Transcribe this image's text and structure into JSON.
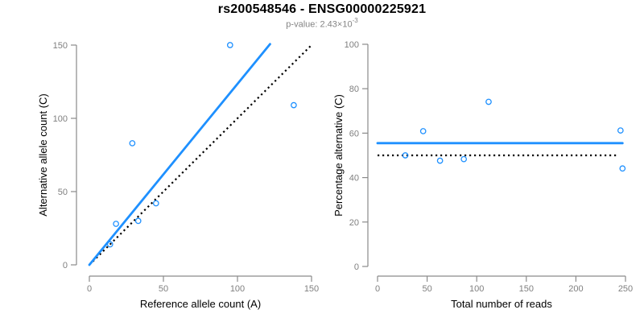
{
  "header": {
    "title": "rs200548546 - ENSG00000225921",
    "pvalue_text": "p-value: 2.43×10",
    "pvalue_exponent": "-3"
  },
  "colors": {
    "accent_blue": "#1E90FF",
    "line_black": "#000000",
    "axis_gray": "#8a8a8a",
    "tick_label_gray": "#7f7f7f",
    "axis_title_black": "#000000"
  },
  "chart_data": [
    {
      "type": "scatter",
      "panel": "left",
      "xlabel": "Reference allele count (A)",
      "ylabel": "Alternative allele count (C)",
      "xlim": [
        0,
        150
      ],
      "ylim": [
        0,
        150
      ],
      "xticks": [
        0,
        50,
        100,
        150
      ],
      "yticks": [
        0,
        50,
        100,
        150
      ],
      "grid": false,
      "legend": "none",
      "points": [
        [
          14,
          14
        ],
        [
          18,
          28
        ],
        [
          33,
          30
        ],
        [
          45,
          42
        ],
        [
          29,
          83
        ],
        [
          95,
          150
        ],
        [
          138,
          109
        ]
      ],
      "fit_line": {
        "style": "solid",
        "slope": 1.235,
        "intercept": 0,
        "x_range": [
          0,
          122
        ]
      },
      "reference_line": {
        "style": "dotted",
        "slope": 1,
        "intercept": 0,
        "x_range": [
          0,
          150
        ]
      }
    },
    {
      "type": "scatter",
      "panel": "right",
      "xlabel": "Total number of reads",
      "ylabel": "Percentage alternative (C)",
      "xlim": [
        0,
        250
      ],
      "ylim": [
        0,
        100
      ],
      "xticks": [
        0,
        50,
        100,
        150,
        200,
        250
      ],
      "yticks": [
        0,
        20,
        40,
        60,
        80,
        100
      ],
      "grid": false,
      "legend": "none",
      "points": [
        [
          28,
          50
        ],
        [
          46,
          60.9
        ],
        [
          63,
          47.6
        ],
        [
          87,
          48.3
        ],
        [
          112,
          74.1
        ],
        [
          245,
          61.2
        ],
        [
          247,
          44.1
        ]
      ],
      "fit_line": {
        "style": "solid",
        "value": 55.5,
        "x_range": [
          0,
          247
        ]
      },
      "reference_line": {
        "style": "dotted",
        "value": 50,
        "x_range": [
          0,
          243
        ]
      }
    }
  ]
}
